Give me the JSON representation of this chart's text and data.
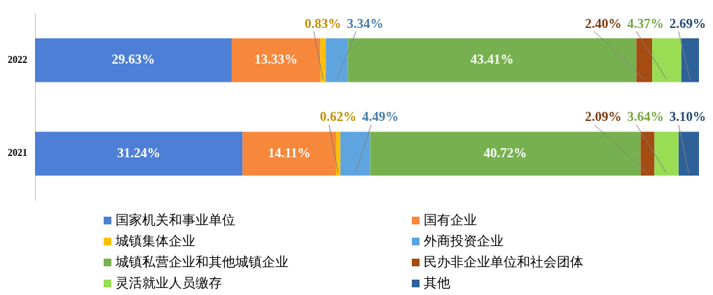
{
  "chart_data": {
    "type": "bar",
    "orientation": "horizontal",
    "stacked": true,
    "categories": [
      "2022",
      "2021"
    ],
    "xlim": [
      0,
      100
    ],
    "tick_labels": "y",
    "grid": false,
    "legend": "bottom",
    "series": [
      {
        "name": "国家机关和事业单位",
        "color": "#4e7fd6",
        "values": [
          29.63,
          31.24
        ],
        "value_labels": [
          "29.63%",
          "31.24%"
        ]
      },
      {
        "name": "国有企业",
        "color": "#f7873b",
        "values": [
          13.33,
          14.11
        ],
        "value_labels": [
          "13.33%",
          "14.11%"
        ]
      },
      {
        "name": "城镇集体企业",
        "color": "#ffc000",
        "values": [
          0.83,
          0.62
        ],
        "value_labels": [
          "0.83%",
          "0.62%"
        ]
      },
      {
        "name": "外商投资企业",
        "color": "#5ea5e0",
        "values": [
          3.34,
          4.49
        ],
        "value_labels": [
          "3.34%",
          "4.49%"
        ]
      },
      {
        "name": "城镇私营企业和其他城镇企业",
        "color": "#77b14f",
        "values": [
          43.41,
          40.72
        ],
        "value_labels": [
          "43.41%",
          "40.72%"
        ]
      },
      {
        "name": "民办非企业单位和社会团体",
        "color": "#a54c13",
        "values": [
          2.4,
          2.09
        ],
        "value_labels": [
          "2.40%",
          "2.09%"
        ]
      },
      {
        "name": "灵活就业人员缴存",
        "color": "#99dd55",
        "values": [
          4.37,
          3.64
        ],
        "value_labels": [
          "4.37%",
          "3.64%"
        ]
      },
      {
        "name": "其他",
        "color": "#2e6199",
        "values": [
          2.69,
          3.1
        ],
        "value_labels": [
          "2.69%",
          "3.10%"
        ]
      }
    ]
  }
}
